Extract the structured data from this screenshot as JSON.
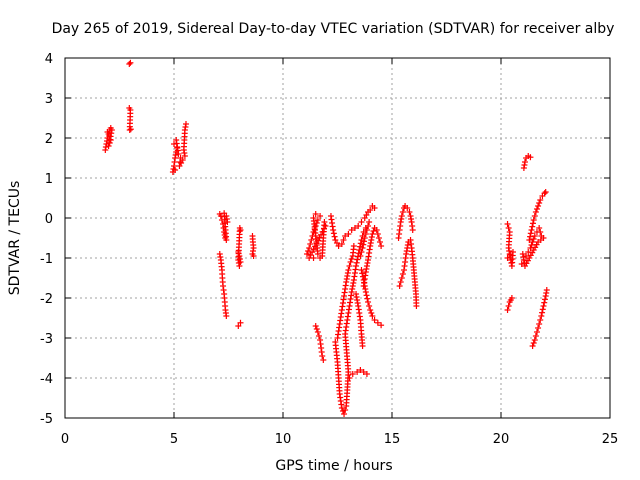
{
  "chart_data": {
    "type": "scatter",
    "title": "Day 265 of 2019, Sidereal Day-to-day VTEC variation (SDTVAR) for receiver alby",
    "xlabel": "GPS time / hours",
    "ylabel": "SDTVAR / TECUs",
    "xlim": [
      0,
      25
    ],
    "ylim": [
      -5,
      4
    ],
    "xticks": [
      0,
      5,
      10,
      15,
      20,
      25
    ],
    "yticks": [
      -5,
      -4,
      -3,
      -2,
      -1,
      0,
      1,
      2,
      3,
      4
    ],
    "xtick_labels": [
      "0",
      "5",
      "10",
      "15",
      "20",
      "25"
    ],
    "ytick_labels": [
      "-5",
      "-4",
      "-3",
      "-2",
      "-1",
      "0",
      "1",
      "2",
      "3",
      "4"
    ],
    "grid": true,
    "marker": "+",
    "series_color": "#ff0000",
    "series": [
      {
        "name": "SDTVAR",
        "tracks": [
          [
            [
              1.85,
              1.7
            ],
            [
              1.9,
              1.85
            ],
            [
              1.95,
              2.0
            ],
            [
              2.0,
              2.1
            ],
            [
              2.05,
              2.2
            ],
            [
              2.1,
              2.25
            ],
            [
              2.15,
              2.2
            ],
            [
              2.0,
              1.8
            ],
            [
              2.1,
              1.95
            ],
            [
              1.95,
              2.15
            ]
          ],
          [
            [
              2.95,
              3.85
            ],
            [
              3.0,
              3.88
            ],
            [
              2.95,
              2.75
            ],
            [
              3.0,
              2.7
            ],
            [
              2.97,
              2.2
            ],
            [
              3.02,
              2.22
            ]
          ],
          [
            [
              4.95,
              1.15
            ],
            [
              5.0,
              1.3
            ],
            [
              5.05,
              1.5
            ],
            [
              5.1,
              1.65
            ],
            [
              5.15,
              1.75
            ],
            [
              5.0,
              1.85
            ],
            [
              5.1,
              1.95
            ],
            [
              5.2,
              1.6
            ],
            [
              5.3,
              1.5
            ],
            [
              5.25,
              1.3
            ],
            [
              5.4,
              1.45
            ],
            [
              5.5,
              1.55
            ],
            [
              5.45,
              1.7
            ],
            [
              5.5,
              2.2
            ],
            [
              5.55,
              2.35
            ],
            [
              5.05,
              1.2
            ]
          ],
          [
            [
              7.1,
              0.1
            ],
            [
              7.15,
              0.05
            ],
            [
              7.2,
              -0.05
            ],
            [
              7.25,
              -0.15
            ],
            [
              7.3,
              -0.35
            ],
            [
              7.35,
              -0.5
            ],
            [
              7.4,
              -0.55
            ],
            [
              7.3,
              0.12
            ],
            [
              7.4,
              0.05
            ],
            [
              7.45,
              -0.1
            ]
          ],
          [
            [
              7.1,
              -0.9
            ],
            [
              7.15,
              -1.05
            ],
            [
              7.2,
              -1.3
            ],
            [
              7.22,
              -1.5
            ],
            [
              7.25,
              -1.7
            ],
            [
              7.3,
              -1.9
            ],
            [
              7.33,
              -2.1
            ],
            [
              7.36,
              -2.3
            ],
            [
              7.4,
              -2.45
            ]
          ],
          [
            [
              7.95,
              -2.7
            ],
            [
              8.05,
              -2.62
            ],
            [
              7.95,
              -0.85
            ],
            [
              8.0,
              -0.95
            ],
            [
              8.05,
              -1.1
            ],
            [
              8.0,
              -1.2
            ],
            [
              7.95,
              -1.05
            ],
            [
              8.02,
              -0.25
            ],
            [
              8.05,
              -0.3
            ]
          ],
          [
            [
              8.6,
              -0.45
            ],
            [
              8.62,
              -0.6
            ],
            [
              8.65,
              -0.75
            ],
            [
              8.6,
              -0.9
            ],
            [
              8.65,
              -0.95
            ]
          ],
          [
            [
              11.1,
              -0.9
            ],
            [
              11.2,
              -0.75
            ],
            [
              11.3,
              -0.55
            ],
            [
              11.4,
              -0.35
            ],
            [
              11.5,
              -0.2
            ],
            [
              11.6,
              -0.05
            ],
            [
              11.7,
              0.05
            ],
            [
              11.5,
              0.1
            ],
            [
              11.4,
              -0.0
            ],
            [
              11.6,
              -0.9
            ],
            [
              11.7,
              -1.0
            ],
            [
              11.8,
              -0.95
            ],
            [
              11.85,
              -0.5
            ],
            [
              11.9,
              -0.1
            ],
            [
              11.95,
              -0.2
            ],
            [
              11.2,
              -1.0
            ],
            [
              11.4,
              -1.0
            ]
          ],
          [
            [
              11.5,
              -2.7
            ],
            [
              11.6,
              -2.85
            ],
            [
              11.7,
              -3.05
            ],
            [
              11.75,
              -3.25
            ],
            [
              11.8,
              -3.45
            ],
            [
              11.85,
              -3.55
            ]
          ],
          [
            [
              12.2,
              0.05
            ],
            [
              12.3,
              -0.3
            ],
            [
              12.4,
              -0.55
            ],
            [
              12.55,
              -0.7
            ],
            [
              12.7,
              -0.65
            ],
            [
              12.85,
              -0.45
            ],
            [
              13.0,
              -0.4
            ],
            [
              13.15,
              -0.3
            ],
            [
              13.3,
              -0.25
            ],
            [
              13.45,
              -0.2
            ],
            [
              13.6,
              -0.1
            ],
            [
              13.75,
              0.0
            ],
            [
              13.9,
              0.15
            ],
            [
              14.0,
              0.2
            ],
            [
              14.1,
              0.3
            ],
            [
              14.2,
              0.25
            ]
          ],
          [
            [
              12.4,
              -3.1
            ],
            [
              12.5,
              -3.6
            ],
            [
              12.55,
              -4.0
            ],
            [
              12.6,
              -4.4
            ],
            [
              12.7,
              -4.75
            ],
            [
              12.8,
              -4.9
            ],
            [
              12.9,
              -4.7
            ],
            [
              12.95,
              -4.3
            ],
            [
              13.0,
              -3.85
            ],
            [
              12.85,
              -2.9
            ],
            [
              12.95,
              -2.55
            ],
            [
              13.05,
              -2.2
            ],
            [
              13.15,
              -1.85
            ],
            [
              13.25,
              -1.55
            ],
            [
              13.35,
              -1.2
            ],
            [
              13.5,
              -0.8
            ],
            [
              13.6,
              -0.55
            ],
            [
              13.7,
              -0.35
            ],
            [
              13.8,
              -0.25
            ]
          ],
          [
            [
              12.5,
              -3.0
            ],
            [
              12.6,
              -2.65
            ],
            [
              12.7,
              -2.3
            ],
            [
              12.8,
              -1.95
            ],
            [
              12.9,
              -1.6
            ],
            [
              13.0,
              -1.3
            ],
            [
              13.1,
              -1.1
            ],
            [
              13.2,
              -0.95
            ],
            [
              13.25,
              -0.7
            ]
          ],
          [
            [
              13.05,
              -4.0
            ],
            [
              13.2,
              -3.9
            ],
            [
              13.4,
              -3.85
            ],
            [
              13.55,
              -3.8
            ],
            [
              13.7,
              -3.85
            ],
            [
              13.85,
              -3.9
            ]
          ],
          [
            [
              13.35,
              -1.9
            ],
            [
              13.45,
              -2.2
            ],
            [
              13.55,
              -2.55
            ],
            [
              13.6,
              -2.9
            ],
            [
              13.65,
              -3.2
            ],
            [
              13.7,
              -1.7
            ],
            [
              13.8,
              -1.35
            ],
            [
              13.9,
              -1.05
            ],
            [
              14.0,
              -0.7
            ],
            [
              14.1,
              -0.4
            ],
            [
              14.2,
              -0.25
            ],
            [
              14.3,
              -0.3
            ],
            [
              14.4,
              -0.5
            ],
            [
              14.5,
              -0.7
            ]
          ],
          [
            [
              13.6,
              -1.3
            ],
            [
              13.7,
              -1.55
            ],
            [
              13.8,
              -1.85
            ],
            [
              13.9,
              -2.1
            ],
            [
              14.0,
              -2.3
            ],
            [
              14.1,
              -2.45
            ],
            [
              14.2,
              -2.55
            ],
            [
              14.35,
              -2.62
            ],
            [
              14.5,
              -2.68
            ],
            [
              13.55,
              -0.95
            ],
            [
              13.65,
              -0.75
            ],
            [
              13.75,
              -0.5
            ],
            [
              13.85,
              -0.3
            ],
            [
              13.95,
              -0.1
            ]
          ],
          [
            [
              15.3,
              -0.5
            ],
            [
              15.35,
              -0.3
            ],
            [
              15.4,
              -0.1
            ],
            [
              15.45,
              0.05
            ],
            [
              15.5,
              0.15
            ],
            [
              15.55,
              0.25
            ],
            [
              15.6,
              0.3
            ],
            [
              15.7,
              0.25
            ],
            [
              15.8,
              0.15
            ],
            [
              15.85,
              0.05
            ],
            [
              15.9,
              -0.1
            ],
            [
              15.95,
              -0.3
            ]
          ],
          [
            [
              15.35,
              -1.7
            ],
            [
              15.45,
              -1.5
            ],
            [
              15.55,
              -1.3
            ],
            [
              15.6,
              -1.1
            ],
            [
              15.65,
              -0.9
            ],
            [
              15.7,
              -0.75
            ],
            [
              15.75,
              -0.6
            ],
            [
              15.85,
              -0.55
            ],
            [
              15.9,
              -0.75
            ],
            [
              15.95,
              -1.0
            ],
            [
              16.0,
              -1.3
            ],
            [
              16.05,
              -1.6
            ],
            [
              16.1,
              -1.9
            ],
            [
              16.12,
              -2.2
            ]
          ],
          [
            [
              20.3,
              -0.15
            ],
            [
              20.35,
              -0.25
            ],
            [
              20.4,
              -0.35
            ],
            [
              20.35,
              -0.75
            ],
            [
              20.4,
              -0.9
            ],
            [
              20.45,
              -1.05
            ],
            [
              20.5,
              -1.2
            ],
            [
              20.55,
              -0.85
            ],
            [
              20.3,
              -1.0
            ]
          ],
          [
            [
              20.3,
              -2.3
            ],
            [
              20.35,
              -2.2
            ],
            [
              20.4,
              -2.1
            ],
            [
              20.45,
              -2.05
            ],
            [
              20.5,
              -2.0
            ]
          ],
          [
            [
              20.95,
              -1.15
            ],
            [
              21.05,
              -1.05
            ],
            [
              21.15,
              -0.95
            ],
            [
              21.25,
              -0.85
            ],
            [
              21.35,
              -0.75
            ],
            [
              21.45,
              -0.6
            ],
            [
              21.55,
              -0.45
            ],
            [
              21.65,
              -0.35
            ],
            [
              21.75,
              -0.25
            ],
            [
              21.85,
              -0.45
            ],
            [
              21.95,
              -0.5
            ],
            [
              21.7,
              -0.6
            ],
            [
              21.5,
              -0.8
            ],
            [
              21.3,
              -1.0
            ],
            [
              21.1,
              -1.2
            ],
            [
              21.0,
              -0.9
            ]
          ],
          [
            [
              21.3,
              -0.55
            ],
            [
              21.4,
              -0.3
            ],
            [
              21.5,
              -0.05
            ],
            [
              21.6,
              0.15
            ],
            [
              21.7,
              0.3
            ],
            [
              21.8,
              0.45
            ],
            [
              21.9,
              0.55
            ],
            [
              22.0,
              0.62
            ],
            [
              22.05,
              0.65
            ]
          ],
          [
            [
              21.05,
              1.25
            ],
            [
              21.1,
              1.4
            ],
            [
              21.15,
              1.5
            ],
            [
              21.25,
              1.55
            ],
            [
              21.35,
              1.52
            ]
          ],
          [
            [
              21.45,
              -3.2
            ],
            [
              21.55,
              -3.05
            ],
            [
              21.65,
              -2.85
            ],
            [
              21.75,
              -2.65
            ],
            [
              21.85,
              -2.45
            ],
            [
              21.95,
              -2.2
            ],
            [
              22.05,
              -1.95
            ],
            [
              22.1,
              -1.8
            ]
          ]
        ]
      }
    ]
  }
}
